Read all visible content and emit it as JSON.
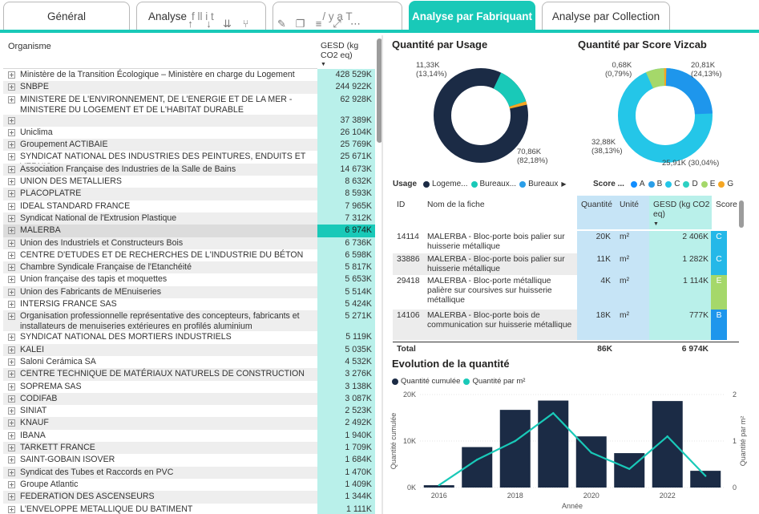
{
  "tabs": [
    {
      "label": "Général",
      "active": false
    },
    {
      "label": "Analyse",
      "active": false
    },
    {
      "label": "",
      "active": false
    },
    {
      "label": "Analyse par Fabriquant",
      "active": true
    },
    {
      "label": "Analyse par Collection",
      "active": false
    }
  ],
  "tab2_suffix": "f  ll  i  t",
  "tab3_text": "/  y  a  T",
  "left_table": {
    "col_organisme": "Organisme",
    "col_gesd": "GESD (kg CO2 eq)",
    "rows": [
      {
        "name": "Ministère de la Transition Écologique – Ministère en charge du Logement",
        "value": "428 529K"
      },
      {
        "name": "SNBPE",
        "value": "244 922K"
      },
      {
        "name": "MINISTERE DE L'ENVIRONNEMENT, DE L'ENERGIE ET DE LA MER - MINISTERE DU LOGEMENT ET DE L'HABITAT DURABLE",
        "value": "62 928K"
      },
      {
        "name": "",
        "value": "37 389K"
      },
      {
        "name": "Uniclima",
        "value": "26 104K"
      },
      {
        "name": "Groupement ACTIBAIE",
        "value": "25 769K"
      },
      {
        "name": "SYNDICAT NATIONAL DES INDUSTRIES DES PEINTURES, ENDUITS ET VERNIS",
        "value": "25 671K"
      },
      {
        "name": "Association Française des Industries de la Salle de Bains",
        "value": "14 673K"
      },
      {
        "name": "UNION DES METALLIERS",
        "value": "8 632K"
      },
      {
        "name": "PLACOPLATRE",
        "value": "8 593K"
      },
      {
        "name": "IDEAL STANDARD FRANCE",
        "value": "7 965K"
      },
      {
        "name": "Syndicat National de l'Extrusion Plastique",
        "value": "7 312K"
      },
      {
        "name": "MALERBA",
        "value": "6 974K",
        "selected": true
      },
      {
        "name": "Union des Industriels et Constructeurs Bois",
        "value": "6 736K"
      },
      {
        "name": "CENTRE D'ETUDES ET DE RECHERCHES DE L'INDUSTRIE DU BÉTON",
        "value": "6 598K"
      },
      {
        "name": "Chambre Syndicale Française de l'Etanchéité",
        "value": "5 817K"
      },
      {
        "name": "Union française des tapis et moquettes",
        "value": "5 653K"
      },
      {
        "name": "Union des Fabricants de MEnuiseries",
        "value": "5 514K"
      },
      {
        "name": "INTERSIG FRANCE SAS",
        "value": "5 424K"
      },
      {
        "name": "Organisation professionnelle représentative des concepteurs, fabricants et installateurs de menuiseries extérieures en profilés aluminium",
        "value": "5 271K"
      },
      {
        "name": "SYNDICAT NATIONAL DES MORTIERS INDUSTRIELS",
        "value": "5 119K"
      },
      {
        "name": "KALEI",
        "value": "5 035K"
      },
      {
        "name": "Saloni Cerámica SA",
        "value": "4 532K"
      },
      {
        "name": "CENTRE TECHNIQUE DE MATÉRIAUX NATURELS DE CONSTRUCTION",
        "value": "3 276K"
      },
      {
        "name": "SOPREMA SAS",
        "value": "3 138K"
      },
      {
        "name": "CODIFAB",
        "value": "3 087K"
      },
      {
        "name": "SINIAT",
        "value": "2 523K"
      },
      {
        "name": "KNAUF",
        "value": "2 492K"
      },
      {
        "name": "IBANA",
        "value": "1 940K"
      },
      {
        "name": "TARKETT FRANCE",
        "value": "1 709K"
      },
      {
        "name": "SAINT-GOBAIN ISOVER",
        "value": "1 684K"
      },
      {
        "name": "Syndicat des Tubes et Raccords en PVC",
        "value": "1 470K"
      },
      {
        "name": "Groupe Atlantic",
        "value": "1 409K"
      },
      {
        "name": "FEDERATION DES ASCENSEURS",
        "value": "1 344K"
      },
      {
        "name": "L'ENVELOPPE METALLIQUE DU BATIMENT",
        "value": "1 111K"
      }
    ]
  },
  "donut_usage": {
    "title": "Quantité par Usage",
    "label_small": "11,33K\n(13,14%)",
    "label_big": "70,86K\n(82,18%)",
    "legend_title": "Usage",
    "legend": [
      {
        "label": "Logeme...",
        "color": "#1b2b45"
      },
      {
        "label": "Bureaux...",
        "color": "#19c9b8"
      },
      {
        "label": "Bureaux",
        "color": "#2a9ee8"
      }
    ],
    "more": "▶"
  },
  "donut_score": {
    "title": "Quantité par Score Vizcab",
    "labels": {
      "tl": "0,68K\n(0,79%)",
      "tr": "20,81K\n(24,13%)",
      "l": "32,88K\n(38,13%)",
      "br": "25,91K (30,04%)"
    },
    "legend_title": "Score ...",
    "legend": [
      {
        "label": "A",
        "color": "#118dff"
      },
      {
        "label": "B",
        "color": "#2a9ee8"
      },
      {
        "label": "C",
        "color": "#24c6e8"
      },
      {
        "label": "D",
        "color": "#2dd0c2"
      },
      {
        "label": "E",
        "color": "#a5d86a"
      },
      {
        "label": "G",
        "color": "#f5a623"
      }
    ]
  },
  "detail_table": {
    "headers": {
      "id": "ID",
      "nom": "Nom de la fiche",
      "qty": "Quantité",
      "unit": "Unité",
      "gesd": "GESD (kg CO2 eq)",
      "score": "Score"
    },
    "rows": [
      {
        "id": "14114",
        "nom": "MALERBA - Bloc-porte bois palier sur huisserie métallique",
        "qty": "20K",
        "unit": "m²",
        "gesd": "2 406K",
        "score": "C",
        "score_color": "#24b8e8"
      },
      {
        "id": "33886",
        "nom": "MALERBA - Bloc-porte bois palier sur huisserie métallique",
        "qty": "11K",
        "unit": "m²",
        "gesd": "1 282K",
        "score": "C",
        "score_color": "#24b8e8"
      },
      {
        "id": "29418",
        "nom": "MALERBA - Bloc-porte métallique palière sur coursives sur huisserie métallique",
        "qty": "4K",
        "unit": "m²",
        "gesd": "1 114K",
        "score": "E",
        "score_color": "#a5d86a"
      },
      {
        "id": "14106",
        "nom": "MALERBA - Bloc-porte bois de communication sur huisserie métallique",
        "qty": "18K",
        "unit": "m²",
        "gesd": "777K",
        "score": "B",
        "score_color": "#1e96ec"
      }
    ],
    "total": {
      "label": "Total",
      "qty": "86K",
      "gesd": "6 974K"
    }
  },
  "combo_title": "Evolution de la quantité",
  "chart_data": {
    "type": "bar",
    "title": "Evolution de la quantité",
    "legend": [
      {
        "name": "Quantité cumulée",
        "color": "#1b2b45"
      },
      {
        "name": "Quantité par m²",
        "color": "#19c9b8"
      }
    ],
    "xlabel": "Année",
    "ylabel": "Quantité cumulée",
    "y2label": "Quantité par m²",
    "x": [
      2016,
      2017,
      2018,
      2019,
      2020,
      2021,
      2022,
      2023
    ],
    "x_ticks": [
      "2016",
      "2018",
      "2020",
      "2022"
    ],
    "y_ticks": [
      "0K",
      "10K",
      "20K"
    ],
    "y2_ticks": [
      "0",
      "1",
      "2"
    ],
    "ylim": [
      0,
      20000
    ],
    "y2lim": [
      0,
      2
    ],
    "series": [
      {
        "name": "Quantité cumulée",
        "type": "bar",
        "values": [
          500,
          8700,
          16700,
          18700,
          11000,
          7400,
          18600,
          3600
        ]
      },
      {
        "name": "Quantité par m²",
        "type": "line",
        "values": [
          0.05,
          0.6,
          1.0,
          1.6,
          0.75,
          0.4,
          1.1,
          0.25
        ]
      }
    ]
  }
}
